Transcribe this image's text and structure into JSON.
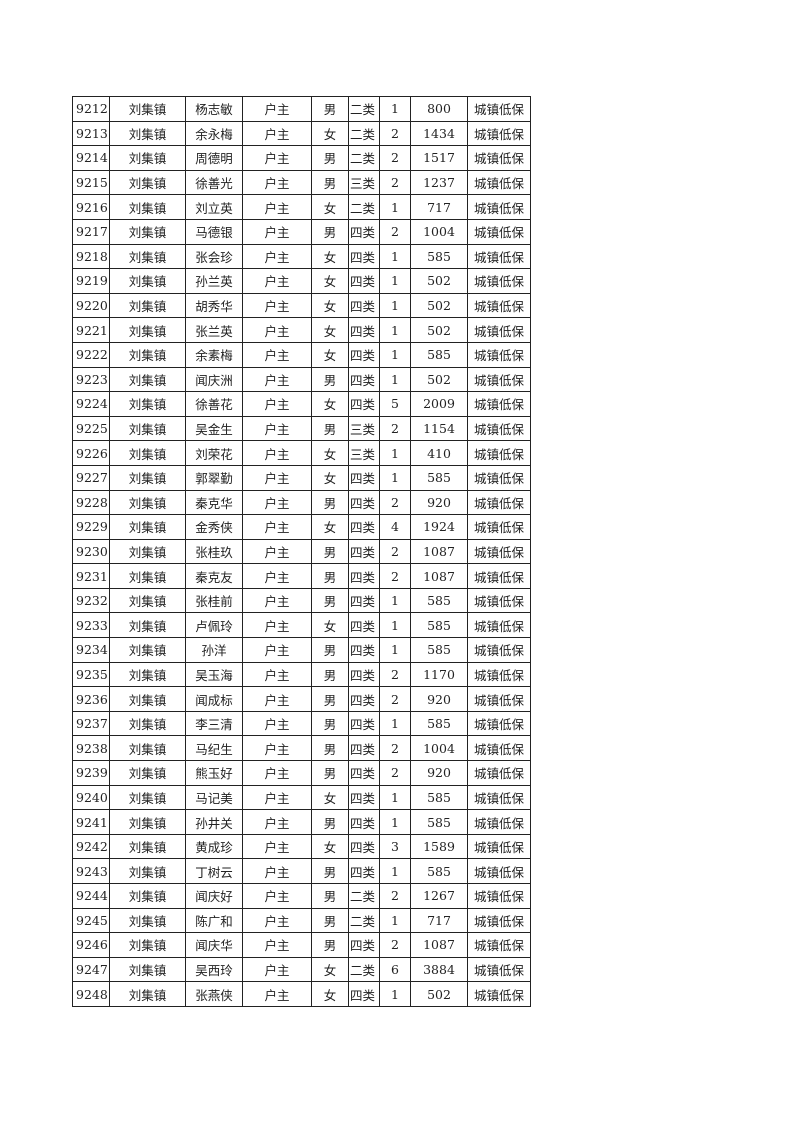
{
  "table": {
    "rows": [
      [
        "9212",
        "刘集镇",
        "杨志敏",
        "户主",
        "男",
        "二类",
        "1",
        "800",
        "城镇低保"
      ],
      [
        "9213",
        "刘集镇",
        "余永梅",
        "户主",
        "女",
        "二类",
        "2",
        "1434",
        "城镇低保"
      ],
      [
        "9214",
        "刘集镇",
        "周德明",
        "户主",
        "男",
        "二类",
        "2",
        "1517",
        "城镇低保"
      ],
      [
        "9215",
        "刘集镇",
        "徐善光",
        "户主",
        "男",
        "三类",
        "2",
        "1237",
        "城镇低保"
      ],
      [
        "9216",
        "刘集镇",
        "刘立英",
        "户主",
        "女",
        "二类",
        "1",
        "717",
        "城镇低保"
      ],
      [
        "9217",
        "刘集镇",
        "马德银",
        "户主",
        "男",
        "四类",
        "2",
        "1004",
        "城镇低保"
      ],
      [
        "9218",
        "刘集镇",
        "张会珍",
        "户主",
        "女",
        "四类",
        "1",
        "585",
        "城镇低保"
      ],
      [
        "9219",
        "刘集镇",
        "孙兰英",
        "户主",
        "女",
        "四类",
        "1",
        "502",
        "城镇低保"
      ],
      [
        "9220",
        "刘集镇",
        "胡秀华",
        "户主",
        "女",
        "四类",
        "1",
        "502",
        "城镇低保"
      ],
      [
        "9221",
        "刘集镇",
        "张兰英",
        "户主",
        "女",
        "四类",
        "1",
        "502",
        "城镇低保"
      ],
      [
        "9222",
        "刘集镇",
        "余素梅",
        "户主",
        "女",
        "四类",
        "1",
        "585",
        "城镇低保"
      ],
      [
        "9223",
        "刘集镇",
        "闻庆洲",
        "户主",
        "男",
        "四类",
        "1",
        "502",
        "城镇低保"
      ],
      [
        "9224",
        "刘集镇",
        "徐善花",
        "户主",
        "女",
        "四类",
        "5",
        "2009",
        "城镇低保"
      ],
      [
        "9225",
        "刘集镇",
        "吴金生",
        "户主",
        "男",
        "三类",
        "2",
        "1154",
        "城镇低保"
      ],
      [
        "9226",
        "刘集镇",
        "刘荣花",
        "户主",
        "女",
        "三类",
        "1",
        "410",
        "城镇低保"
      ],
      [
        "9227",
        "刘集镇",
        "郭翠勤",
        "户主",
        "女",
        "四类",
        "1",
        "585",
        "城镇低保"
      ],
      [
        "9228",
        "刘集镇",
        "秦克华",
        "户主",
        "男",
        "四类",
        "2",
        "920",
        "城镇低保"
      ],
      [
        "9229",
        "刘集镇",
        "金秀侠",
        "户主",
        "女",
        "四类",
        "4",
        "1924",
        "城镇低保"
      ],
      [
        "9230",
        "刘集镇",
        "张桂玖",
        "户主",
        "男",
        "四类",
        "2",
        "1087",
        "城镇低保"
      ],
      [
        "9231",
        "刘集镇",
        "秦克友",
        "户主",
        "男",
        "四类",
        "2",
        "1087",
        "城镇低保"
      ],
      [
        "9232",
        "刘集镇",
        "张桂前",
        "户主",
        "男",
        "四类",
        "1",
        "585",
        "城镇低保"
      ],
      [
        "9233",
        "刘集镇",
        "卢佩玲",
        "户主",
        "女",
        "四类",
        "1",
        "585",
        "城镇低保"
      ],
      [
        "9234",
        "刘集镇",
        "孙洋",
        "户主",
        "男",
        "四类",
        "1",
        "585",
        "城镇低保"
      ],
      [
        "9235",
        "刘集镇",
        "吴玉海",
        "户主",
        "男",
        "四类",
        "2",
        "1170",
        "城镇低保"
      ],
      [
        "9236",
        "刘集镇",
        "闻成标",
        "户主",
        "男",
        "四类",
        "2",
        "920",
        "城镇低保"
      ],
      [
        "9237",
        "刘集镇",
        "李三清",
        "户主",
        "男",
        "四类",
        "1",
        "585",
        "城镇低保"
      ],
      [
        "9238",
        "刘集镇",
        "马纪生",
        "户主",
        "男",
        "四类",
        "2",
        "1004",
        "城镇低保"
      ],
      [
        "9239",
        "刘集镇",
        "熊玉好",
        "户主",
        "男",
        "四类",
        "2",
        "920",
        "城镇低保"
      ],
      [
        "9240",
        "刘集镇",
        "马记美",
        "户主",
        "女",
        "四类",
        "1",
        "585",
        "城镇低保"
      ],
      [
        "9241",
        "刘集镇",
        "孙井关",
        "户主",
        "男",
        "四类",
        "1",
        "585",
        "城镇低保"
      ],
      [
        "9242",
        "刘集镇",
        "黄成珍",
        "户主",
        "女",
        "四类",
        "3",
        "1589",
        "城镇低保"
      ],
      [
        "9243",
        "刘集镇",
        "丁树云",
        "户主",
        "男",
        "四类",
        "1",
        "585",
        "城镇低保"
      ],
      [
        "9244",
        "刘集镇",
        "闻庆好",
        "户主",
        "男",
        "二类",
        "2",
        "1267",
        "城镇低保"
      ],
      [
        "9245",
        "刘集镇",
        "陈广和",
        "户主",
        "男",
        "二类",
        "1",
        "717",
        "城镇低保"
      ],
      [
        "9246",
        "刘集镇",
        "闻庆华",
        "户主",
        "男",
        "四类",
        "2",
        "1087",
        "城镇低保"
      ],
      [
        "9247",
        "刘集镇",
        "吴西玲",
        "户主",
        "女",
        "二类",
        "6",
        "3884",
        "城镇低保"
      ],
      [
        "9248",
        "刘集镇",
        "张燕侠",
        "户主",
        "女",
        "四类",
        "1",
        "502",
        "城镇低保"
      ]
    ]
  }
}
